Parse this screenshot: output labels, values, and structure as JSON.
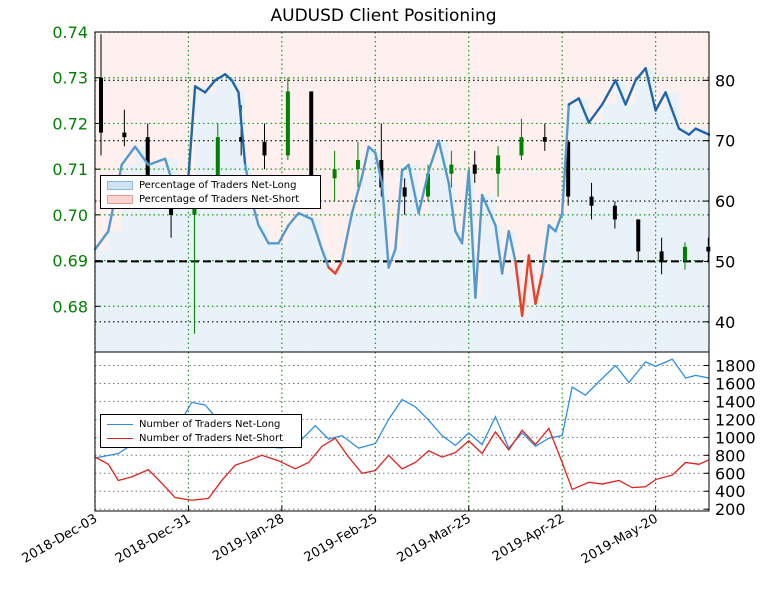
{
  "chart_data": [
    {
      "type": "candlestick+line",
      "title": "AUDUSD Client Positioning",
      "xlabel": "",
      "ylabel": "",
      "x_tick_labels": [
        "2018-Dec-03",
        "2018-Dec-31",
        "2019-Jan-28",
        "2019-Feb-25",
        "2019-Mar-25",
        "2019-Apr-22",
        "2019-May-20"
      ],
      "x_range": [
        "2018-Dec-03",
        "2019-Jun-05"
      ],
      "grid": true,
      "left_axis": {
        "ticks": [
          "0.68",
          "0.69",
          "0.70",
          "0.71",
          "0.72",
          "0.73",
          "0.74"
        ],
        "range": [
          0.67,
          0.74
        ]
      },
      "right_axis": {
        "ticks": [
          "40",
          "50",
          "60",
          "70",
          "80"
        ],
        "range": [
          35,
          88
        ]
      },
      "reference_line": 50,
      "legend": {
        "placement": "center-left",
        "entries": [
          "Percentage of Traders Net-Long",
          "Percentage of Traders Net-Short"
        ]
      },
      "price_ohlc_weekly_approx": [
        {
          "date": "2018-Dec-03",
          "open": 0.73,
          "high": 0.7395,
          "low": 0.713,
          "close": 0.718
        },
        {
          "date": "2018-Dec-10",
          "open": 0.718,
          "high": 0.723,
          "low": 0.715,
          "close": 0.717
        },
        {
          "date": "2018-Dec-17",
          "open": 0.717,
          "high": 0.72,
          "low": 0.705,
          "close": 0.706
        },
        {
          "date": "2018-Dec-24",
          "open": 0.706,
          "high": 0.708,
          "low": 0.695,
          "close": 0.7
        },
        {
          "date": "2018-Dec-31",
          "open": 0.7,
          "high": 0.705,
          "low": 0.674,
          "close": 0.704
        },
        {
          "date": "2019-Jan-07",
          "open": 0.704,
          "high": 0.72,
          "low": 0.702,
          "close": 0.717
        },
        {
          "date": "2019-Jan-14",
          "open": 0.717,
          "high": 0.724,
          "low": 0.713,
          "close": 0.716
        },
        {
          "date": "2019-Jan-21",
          "open": 0.716,
          "high": 0.72,
          "low": 0.71,
          "close": 0.713
        },
        {
          "date": "2019-Jan-28",
          "open": 0.713,
          "high": 0.73,
          "low": 0.712,
          "close": 0.727
        },
        {
          "date": "2019-Feb-04",
          "open": 0.727,
          "high": 0.727,
          "low": 0.706,
          "close": 0.708
        },
        {
          "date": "2019-Feb-11",
          "open": 0.708,
          "high": 0.714,
          "low": 0.703,
          "close": 0.71
        },
        {
          "date": "2019-Feb-18",
          "open": 0.71,
          "high": 0.716,
          "low": 0.706,
          "close": 0.712
        },
        {
          "date": "2019-Feb-25",
          "open": 0.712,
          "high": 0.72,
          "low": 0.704,
          "close": 0.706
        },
        {
          "date": "2019-Mar-04",
          "open": 0.706,
          "high": 0.708,
          "low": 0.7,
          "close": 0.704
        },
        {
          "date": "2019-Mar-11",
          "open": 0.704,
          "high": 0.711,
          "low": 0.703,
          "close": 0.709
        },
        {
          "date": "2019-Mar-18",
          "open": 0.709,
          "high": 0.714,
          "low": 0.706,
          "close": 0.711
        },
        {
          "date": "2019-Mar-25",
          "open": 0.711,
          "high": 0.714,
          "low": 0.707,
          "close": 0.709
        },
        {
          "date": "2019-Apr-01",
          "open": 0.709,
          "high": 0.715,
          "low": 0.704,
          "close": 0.713
        },
        {
          "date": "2019-Apr-08",
          "open": 0.713,
          "high": 0.721,
          "low": 0.712,
          "close": 0.717
        },
        {
          "date": "2019-Apr-15",
          "open": 0.717,
          "high": 0.72,
          "low": 0.714,
          "close": 0.716
        },
        {
          "date": "2019-Apr-22",
          "open": 0.716,
          "high": 0.716,
          "low": 0.702,
          "close": 0.704
        },
        {
          "date": "2019-Apr-29",
          "open": 0.704,
          "high": 0.707,
          "low": 0.699,
          "close": 0.702
        },
        {
          "date": "2019-May-06",
          "open": 0.702,
          "high": 0.703,
          "low": 0.697,
          "close": 0.699
        },
        {
          "date": "2019-May-13",
          "open": 0.699,
          "high": 0.699,
          "low": 0.69,
          "close": 0.692
        },
        {
          "date": "2019-May-20",
          "open": 0.692,
          "high": 0.695,
          "low": 0.687,
          "close": 0.69
        },
        {
          "date": "2019-May-27",
          "open": 0.69,
          "high": 0.694,
          "low": 0.688,
          "close": 0.693
        },
        {
          "date": "2019-Jun-03",
          "open": 0.693,
          "high": 0.695,
          "low": 0.69,
          "close": 0.692
        }
      ],
      "pct_net_long_approx": [
        {
          "date": "2018-Dec-03",
          "value": 52
        },
        {
          "date": "2018-Dec-07",
          "value": 55
        },
        {
          "date": "2018-Dec-11",
          "value": 66
        },
        {
          "date": "2018-Dec-15",
          "value": 69
        },
        {
          "date": "2018-Dec-19",
          "value": 66
        },
        {
          "date": "2018-Dec-24",
          "value": 67
        },
        {
          "date": "2018-Dec-28",
          "value": 60
        },
        {
          "date": "2018-Dec-31",
          "value": 64
        },
        {
          "date": "2019-Jan-02",
          "value": 79
        },
        {
          "date": "2019-Jan-05",
          "value": 78
        },
        {
          "date": "2019-Jan-08",
          "value": 80
        },
        {
          "date": "2019-Jan-11",
          "value": 81
        },
        {
          "date": "2019-Jan-13",
          "value": 80
        },
        {
          "date": "2019-Jan-15",
          "value": 78
        },
        {
          "date": "2019-Jan-17",
          "value": 66
        },
        {
          "date": "2019-Jan-19",
          "value": 60
        },
        {
          "date": "2019-Jan-21",
          "value": 56
        },
        {
          "date": "2019-Jan-24",
          "value": 53
        },
        {
          "date": "2019-Jan-27",
          "value": 53
        },
        {
          "date": "2019-Jan-30",
          "value": 56
        },
        {
          "date": "2019-Feb-02",
          "value": 58
        },
        {
          "date": "2019-Feb-06",
          "value": 57
        },
        {
          "date": "2019-Feb-09",
          "value": 52
        },
        {
          "date": "2019-Feb-11",
          "value": 49
        },
        {
          "date": "2019-Feb-13",
          "value": 48
        },
        {
          "date": "2019-Feb-15",
          "value": 50
        },
        {
          "date": "2019-Feb-18",
          "value": 58
        },
        {
          "date": "2019-Feb-21",
          "value": 64
        },
        {
          "date": "2019-Feb-23",
          "value": 69
        },
        {
          "date": "2019-Feb-25",
          "value": 68
        },
        {
          "date": "2019-Feb-27",
          "value": 63
        },
        {
          "date": "2019-Mar-01",
          "value": 49
        },
        {
          "date": "2019-Mar-03",
          "value": 52
        },
        {
          "date": "2019-Mar-05",
          "value": 65
        },
        {
          "date": "2019-Mar-07",
          "value": 66
        },
        {
          "date": "2019-Mar-10",
          "value": 58
        },
        {
          "date": "2019-Mar-13",
          "value": 65
        },
        {
          "date": "2019-Mar-16",
          "value": 70
        },
        {
          "date": "2019-Mar-19",
          "value": 63
        },
        {
          "date": "2019-Mar-21",
          "value": 55
        },
        {
          "date": "2019-Mar-23",
          "value": 53
        },
        {
          "date": "2019-Mar-25",
          "value": 65
        },
        {
          "date": "2019-Mar-27",
          "value": 44
        },
        {
          "date": "2019-Mar-29",
          "value": 61
        },
        {
          "date": "2019-Apr-02",
          "value": 56
        },
        {
          "date": "2019-Apr-04",
          "value": 48
        },
        {
          "date": "2019-Apr-06",
          "value": 55
        },
        {
          "date": "2019-Apr-08",
          "value": 50
        },
        {
          "date": "2019-Apr-10",
          "value": 41
        },
        {
          "date": "2019-Apr-12",
          "value": 51
        },
        {
          "date": "2019-Apr-14",
          "value": 43
        },
        {
          "date": "2019-Apr-16",
          "value": 48
        },
        {
          "date": "2019-Apr-18",
          "value": 56
        },
        {
          "date": "2019-Apr-20",
          "value": 55
        },
        {
          "date": "2019-Apr-22",
          "value": 58
        },
        {
          "date": "2019-Apr-24",
          "value": 76
        },
        {
          "date": "2019-Apr-27",
          "value": 77
        },
        {
          "date": "2019-Apr-30",
          "value": 73
        },
        {
          "date": "2019-May-04",
          "value": 76
        },
        {
          "date": "2019-May-08",
          "value": 80
        },
        {
          "date": "2019-May-11",
          "value": 76
        },
        {
          "date": "2019-May-14",
          "value": 80
        },
        {
          "date": "2019-May-17",
          "value": 82
        },
        {
          "date": "2019-May-20",
          "value": 75
        },
        {
          "date": "2019-May-23",
          "value": 78
        },
        {
          "date": "2019-May-27",
          "value": 72
        },
        {
          "date": "2019-May-30",
          "value": 71
        },
        {
          "date": "2019-Jun-01",
          "value": 72
        },
        {
          "date": "2019-Jun-05",
          "value": 71
        }
      ]
    },
    {
      "type": "line",
      "title": "",
      "xlabel": "",
      "ylabel": "",
      "right_axis": {
        "ticks": [
          "200",
          "400",
          "600",
          "800",
          "1000",
          "1200",
          "1400",
          "1600",
          "1800"
        ],
        "range": [
          180,
          1950
        ]
      },
      "grid": true,
      "legend": {
        "placement": "center-left",
        "entries": [
          "Number of Traders Net-Long",
          "Number of Traders Net-Short"
        ]
      },
      "series": [
        {
          "name": "Number of Traders Net-Long",
          "color": "#2f8fe0",
          "points": [
            {
              "date": "2018-Dec-03",
              "value": 770
            },
            {
              "date": "2018-Dec-10",
              "value": 820
            },
            {
              "date": "2018-Dec-17",
              "value": 990
            },
            {
              "date": "2018-Dec-24",
              "value": 950
            },
            {
              "date": "2018-Dec-28",
              "value": 1130
            },
            {
              "date": "2019-Jan-01",
              "value": 1390
            },
            {
              "date": "2019-Jan-05",
              "value": 1360
            },
            {
              "date": "2019-Jan-09",
              "value": 1190
            },
            {
              "date": "2019-Jan-13",
              "value": 1040
            },
            {
              "date": "2019-Jan-17",
              "value": 960
            },
            {
              "date": "2019-Jan-22",
              "value": 900
            },
            {
              "date": "2019-Jan-28",
              "value": 880
            },
            {
              "date": "2019-Feb-02",
              "value": 940
            },
            {
              "date": "2019-Feb-07",
              "value": 1130
            },
            {
              "date": "2019-Feb-11",
              "value": 980
            },
            {
              "date": "2019-Feb-15",
              "value": 1020
            },
            {
              "date": "2019-Feb-20",
              "value": 880
            },
            {
              "date": "2019-Feb-25",
              "value": 930
            },
            {
              "date": "2019-Mar-01",
              "value": 1200
            },
            {
              "date": "2019-Mar-05",
              "value": 1420
            },
            {
              "date": "2019-Mar-09",
              "value": 1340
            },
            {
              "date": "2019-Mar-13",
              "value": 1190
            },
            {
              "date": "2019-Mar-17",
              "value": 1020
            },
            {
              "date": "2019-Mar-21",
              "value": 910
            },
            {
              "date": "2019-Mar-25",
              "value": 1050
            },
            {
              "date": "2019-Mar-29",
              "value": 920
            },
            {
              "date": "2019-Apr-02",
              "value": 1230
            },
            {
              "date": "2019-Apr-06",
              "value": 880
            },
            {
              "date": "2019-Apr-10",
              "value": 1050
            },
            {
              "date": "2019-Apr-14",
              "value": 900
            },
            {
              "date": "2019-Apr-18",
              "value": 990
            },
            {
              "date": "2019-Apr-22",
              "value": 1020
            },
            {
              "date": "2019-Apr-25",
              "value": 1560
            },
            {
              "date": "2019-Apr-29",
              "value": 1470
            },
            {
              "date": "2019-May-03",
              "value": 1620
            },
            {
              "date": "2019-May-08",
              "value": 1800
            },
            {
              "date": "2019-May-12",
              "value": 1610
            },
            {
              "date": "2019-May-17",
              "value": 1840
            },
            {
              "date": "2019-May-20",
              "value": 1790
            },
            {
              "date": "2019-May-25",
              "value": 1870
            },
            {
              "date": "2019-May-29",
              "value": 1660
            },
            {
              "date": "2019-Jun-01",
              "value": 1690
            },
            {
              "date": "2019-Jun-05",
              "value": 1660
            }
          ]
        },
        {
          "name": "Number of Traders Net-Short",
          "color": "#e0201c",
          "points": [
            {
              "date": "2018-Dec-03",
              "value": 780
            },
            {
              "date": "2018-Dec-07",
              "value": 700
            },
            {
              "date": "2018-Dec-10",
              "value": 520
            },
            {
              "date": "2018-Dec-14",
              "value": 560
            },
            {
              "date": "2018-Dec-19",
              "value": 640
            },
            {
              "date": "2018-Dec-23",
              "value": 490
            },
            {
              "date": "2018-Dec-27",
              "value": 330
            },
            {
              "date": "2019-Jan-01",
              "value": 300
            },
            {
              "date": "2019-Jan-06",
              "value": 320
            },
            {
              "date": "2019-Jan-10",
              "value": 520
            },
            {
              "date": "2019-Jan-14",
              "value": 690
            },
            {
              "date": "2019-Jan-18",
              "value": 740
            },
            {
              "date": "2019-Jan-22",
              "value": 800
            },
            {
              "date": "2019-Jan-27",
              "value": 740
            },
            {
              "date": "2019-Feb-01",
              "value": 650
            },
            {
              "date": "2019-Feb-05",
              "value": 720
            },
            {
              "date": "2019-Feb-09",
              "value": 900
            },
            {
              "date": "2019-Feb-13",
              "value": 990
            },
            {
              "date": "2019-Feb-17",
              "value": 780
            },
            {
              "date": "2019-Feb-21",
              "value": 600
            },
            {
              "date": "2019-Feb-25",
              "value": 630
            },
            {
              "date": "2019-Mar-01",
              "value": 800
            },
            {
              "date": "2019-Mar-05",
              "value": 650
            },
            {
              "date": "2019-Mar-09",
              "value": 720
            },
            {
              "date": "2019-Mar-13",
              "value": 850
            },
            {
              "date": "2019-Mar-17",
              "value": 780
            },
            {
              "date": "2019-Mar-21",
              "value": 830
            },
            {
              "date": "2019-Mar-25",
              "value": 960
            },
            {
              "date": "2019-Mar-29",
              "value": 820
            },
            {
              "date": "2019-Apr-02",
              "value": 1060
            },
            {
              "date": "2019-Apr-06",
              "value": 860
            },
            {
              "date": "2019-Apr-10",
              "value": 1080
            },
            {
              "date": "2019-Apr-14",
              "value": 920
            },
            {
              "date": "2019-Apr-18",
              "value": 1100
            },
            {
              "date": "2019-Apr-22",
              "value": 720
            },
            {
              "date": "2019-Apr-25",
              "value": 420
            },
            {
              "date": "2019-Apr-30",
              "value": 500
            },
            {
              "date": "2019-May-04",
              "value": 480
            },
            {
              "date": "2019-May-09",
              "value": 520
            },
            {
              "date": "2019-May-13",
              "value": 440
            },
            {
              "date": "2019-May-17",
              "value": 450
            },
            {
              "date": "2019-May-20",
              "value": 530
            },
            {
              "date": "2019-May-25",
              "value": 580
            },
            {
              "date": "2019-May-29",
              "value": 720
            },
            {
              "date": "2019-Jun-02",
              "value": 700
            },
            {
              "date": "2019-Jun-05",
              "value": 750
            }
          ]
        }
      ]
    }
  ],
  "colors": {
    "price_up": "#008000",
    "price_down": "#000000",
    "net_long_line": "#3377bb",
    "net_short_line": "#e8402a",
    "net_long_fill": "#cfe3f2",
    "net_short_fill": "#fcd4d0",
    "grid_green": "#1a9a1a",
    "left_tick_text": "#008000"
  }
}
